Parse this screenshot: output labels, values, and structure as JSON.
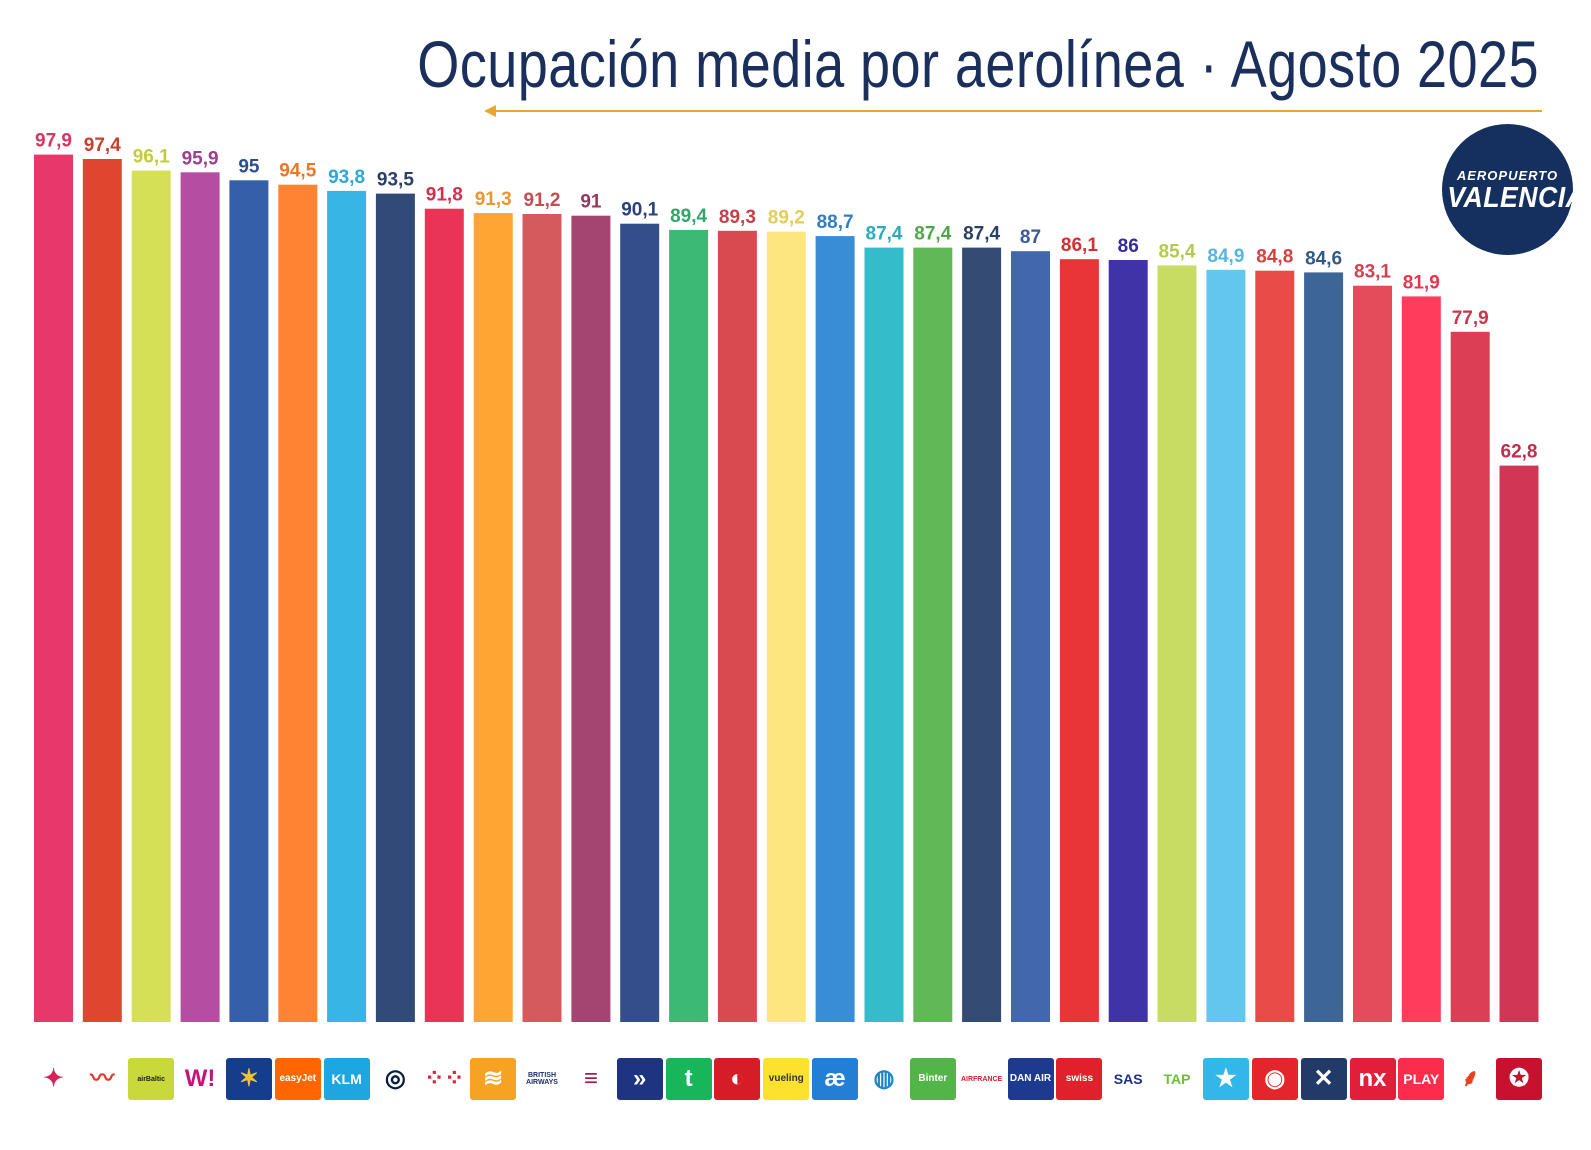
{
  "title": "Ocupación media por aerolínea · Agosto 2025",
  "badge": {
    "line1": "AEROPUERTO",
    "line2": "VALENCIA"
  },
  "colors": {
    "title": "#1a2f5c",
    "arrow": "#e8a530",
    "badge": "#15305e"
  },
  "chart_data": {
    "type": "bar",
    "title": "Ocupación media por aerolínea · Agosto 2025",
    "xlabel": "",
    "ylabel": "",
    "ylim": [
      0,
      100
    ],
    "grid": false,
    "legend": "none",
    "values": [
      97.9,
      97.4,
      96.1,
      95.9,
      95,
      94.5,
      93.8,
      93.5,
      91.8,
      91.3,
      91.2,
      91,
      90.1,
      89.4,
      89.3,
      89.2,
      88.7,
      87.4,
      87.4,
      87.4,
      87,
      86.1,
      86,
      85.4,
      84.9,
      84.8,
      84.6,
      83.1,
      81.9,
      77.9,
      62.8
    ],
    "labels": [
      "97,9",
      "97,4",
      "96,1",
      "95,9",
      "95",
      "94,5",
      "93,8",
      "93,5",
      "91,8",
      "91,3",
      "91,2",
      "91",
      "90,1",
      "89,4",
      "89,3",
      "89,2",
      "88,7",
      "87,4",
      "87,4",
      "87,4",
      "87",
      "86,1",
      "86",
      "85,4",
      "84,9",
      "84,8",
      "84,6",
      "83,1",
      "81,9",
      "77,9",
      "62,8"
    ],
    "bar_colors": [
      "#e8386a",
      "#e04530",
      "#d6e056",
      "#b54ea3",
      "#355fa8",
      "#ff8333",
      "#35b6e5",
      "#324a78",
      "#ea3456",
      "#fea534",
      "#d55a5e",
      "#a44470",
      "#344d8b",
      "#3cba74",
      "#d84a4f",
      "#fde67f",
      "#398cd6",
      "#34bccb",
      "#60b856",
      "#344c74",
      "#4367ad",
      "#e93537",
      "#4033a8",
      "#c8dc64",
      "#63c6ef",
      "#e94b48",
      "#3e6597",
      "#e54c5b",
      "#fe3c5c",
      "#dc3f55",
      "#d23655"
    ],
    "label_colors": [
      "#d5365f",
      "#c63f2b",
      "#c3cc3c",
      "#9c3f8e",
      "#2d4f8f",
      "#ee7627",
      "#2ea7d4",
      "#2a3f66",
      "#d42e4d",
      "#e9972e",
      "#c44d52",
      "#903a62",
      "#2c4179",
      "#30a766",
      "#c4404a",
      "#e4cd58",
      "#317ec4",
      "#2dabba",
      "#52a64a",
      "#2a3f66",
      "#3a5a9a",
      "#d62e31",
      "#362c96",
      "#b6c94f",
      "#54b7e0",
      "#d5413f",
      "#345887",
      "#d0424f",
      "#e8344f",
      "#c8374b",
      "#be2f4b"
    ]
  },
  "airline_logos": [
    {
      "name": "cross-pattern",
      "text": "✦",
      "bg": "#ffffff",
      "fg": "#d6245a"
    },
    {
      "name": "swoosh",
      "text": "〰",
      "bg": "#ffffff",
      "fg": "#e3392a"
    },
    {
      "name": "airbaltic",
      "text": "airBaltic",
      "bg": "#c9d93a",
      "fg": "#1d1d1d"
    },
    {
      "name": "wizz",
      "text": "W!",
      "bg": "#ffffff",
      "fg": "#c3147d"
    },
    {
      "name": "ryanair",
      "text": "✶",
      "bg": "#143d8d",
      "fg": "#f2c230"
    },
    {
      "name": "easyjet",
      "text": "easyJet",
      "bg": "#ff6600",
      "fg": "#ffffff"
    },
    {
      "name": "klm",
      "text": "KLM",
      "bg": "#1da6e0",
      "fg": "#ffffff"
    },
    {
      "name": "lufthansa",
      "text": "◎",
      "bg": "#ffffff",
      "fg": "#0a1d3d"
    },
    {
      "name": "dots",
      "text": "⁘⁘",
      "bg": "#ffffff",
      "fg": "#e4223a"
    },
    {
      "name": "stripes",
      "text": "≋",
      "bg": "#f6a324",
      "fg": "#ffffff"
    },
    {
      "name": "british-airways",
      "text": "BRITISH AIRWAYS",
      "bg": "#ffffff",
      "fg": "#1b2f68"
    },
    {
      "name": "eurowings",
      "text": "≡",
      "bg": "#ffffff",
      "fg": "#9c1f57"
    },
    {
      "name": "arrow",
      "text": "»",
      "bg": "#1e3480",
      "fg": "#ffffff"
    },
    {
      "name": "transavia",
      "text": "t",
      "bg": "#19b55b",
      "fg": "#ffffff"
    },
    {
      "name": "turkish",
      "text": "◐",
      "bg": "#d61d27",
      "fg": "#ffffff"
    },
    {
      "name": "vueling",
      "text": "vueling",
      "bg": "#fce12f",
      "fg": "#333333"
    },
    {
      "name": "aer-lingus",
      "text": "æ",
      "bg": "#237fd6",
      "fg": "#ffffff"
    },
    {
      "name": "tunisair",
      "text": "◍",
      "bg": "#ffffff",
      "fg": "#1d88c9"
    },
    {
      "name": "binter",
      "text": "Binter",
      "bg": "#52b548",
      "fg": "#ffffff"
    },
    {
      "name": "air-france",
      "text": "AIRFRANCE",
      "bg": "#ffffff",
      "fg": "#d01f2a"
    },
    {
      "name": "dan-air",
      "text": "DAN AIR",
      "bg": "#1d3a8f",
      "fg": "#ffffff"
    },
    {
      "name": "swiss",
      "text": "swiss",
      "bg": "#e0202a",
      "fg": "#ffffff"
    },
    {
      "name": "sas",
      "text": "SAS",
      "bg": "#ffffff",
      "fg": "#1b2f8e"
    },
    {
      "name": "tap",
      "text": "TAP",
      "bg": "#ffffff",
      "fg": "#6cbf3b"
    },
    {
      "name": "star",
      "text": "★",
      "bg": "#33b7ea",
      "fg": "#ffffff"
    },
    {
      "name": "crest",
      "text": "◉",
      "bg": "#e2262b",
      "fg": "#ffffff"
    },
    {
      "name": "ornament",
      "text": "✕",
      "bg": "#213a67",
      "fg": "#ffffff"
    },
    {
      "name": "nx",
      "text": "nx",
      "bg": "#e21f3b",
      "fg": "#ffffff"
    },
    {
      "name": "play",
      "text": "PLAY",
      "bg": "#fb2c4c",
      "fg": "#ffffff"
    },
    {
      "name": "iberia",
      "text": "⸙",
      "bg": "#ffffff",
      "fg": "#e8421f"
    },
    {
      "name": "royal-air-maroc",
      "text": "✪",
      "bg": "#c8112f",
      "fg": "#ffffff"
    }
  ]
}
